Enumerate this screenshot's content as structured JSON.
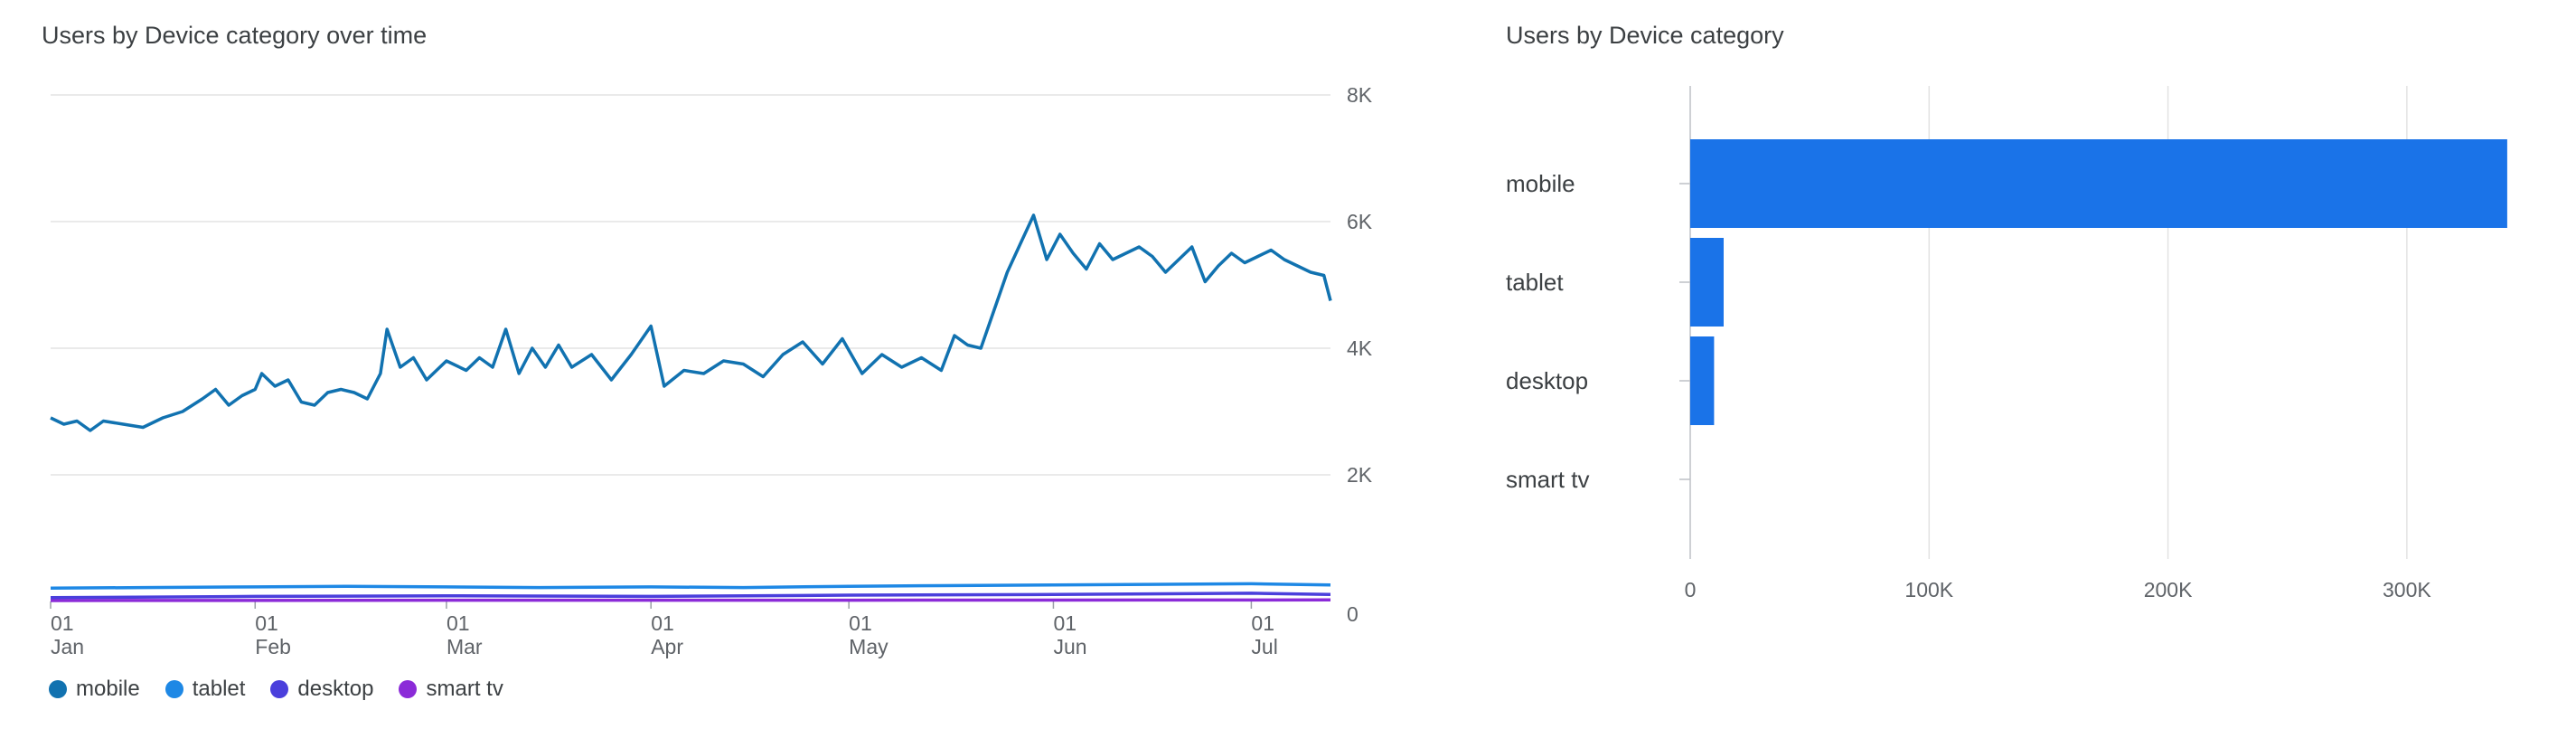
{
  "colors": {
    "mobile": "#1172b0",
    "tablet": "#1e88e5",
    "desktop": "#4a3fdc",
    "smart_tv": "#8b2bd8",
    "bar": "#1a73e8",
    "grid": "#e3e3e3"
  },
  "chart_data": [
    {
      "type": "line",
      "title": "Users by Device category over time",
      "ylim": [
        0,
        8000
      ],
      "y_ticks": [
        0,
        2000,
        4000,
        6000,
        8000
      ],
      "y_tick_labels": [
        "0",
        "2K",
        "4K",
        "6K",
        "8K"
      ],
      "xlim": [
        "2024-01-01",
        "2024-07-13"
      ],
      "x_ticks": [
        {
          "date": "2024-01-01",
          "day": "01",
          "month": "Jan"
        },
        {
          "date": "2024-02-01",
          "day": "01",
          "month": "Feb"
        },
        {
          "date": "2024-03-01",
          "day": "01",
          "month": "Mar"
        },
        {
          "date": "2024-04-01",
          "day": "01",
          "month": "Apr"
        },
        {
          "date": "2024-05-01",
          "day": "01",
          "month": "May"
        },
        {
          "date": "2024-06-01",
          "day": "01",
          "month": "Jun"
        },
        {
          "date": "2024-07-01",
          "day": "01",
          "month": "Jul"
        }
      ],
      "grid": true,
      "legend_position": "bottom-left",
      "series": [
        {
          "name": "mobile",
          "color_key": "mobile",
          "points": [
            [
              "2024-01-01",
              2900
            ],
            [
              "2024-01-03",
              2800
            ],
            [
              "2024-01-05",
              2850
            ],
            [
              "2024-01-07",
              2700
            ],
            [
              "2024-01-09",
              2850
            ],
            [
              "2024-01-12",
              2800
            ],
            [
              "2024-01-15",
              2750
            ],
            [
              "2024-01-18",
              2900
            ],
            [
              "2024-01-21",
              3000
            ],
            [
              "2024-01-24",
              3200
            ],
            [
              "2024-01-26",
              3350
            ],
            [
              "2024-01-28",
              3100
            ],
            [
              "2024-01-30",
              3250
            ],
            [
              "2024-02-01",
              3350
            ],
            [
              "2024-02-02",
              3600
            ],
            [
              "2024-02-04",
              3400
            ],
            [
              "2024-02-06",
              3500
            ],
            [
              "2024-02-08",
              3150
            ],
            [
              "2024-02-10",
              3100
            ],
            [
              "2024-02-12",
              3300
            ],
            [
              "2024-02-14",
              3350
            ],
            [
              "2024-02-16",
              3300
            ],
            [
              "2024-02-18",
              3200
            ],
            [
              "2024-02-20",
              3600
            ],
            [
              "2024-02-21",
              4300
            ],
            [
              "2024-02-23",
              3700
            ],
            [
              "2024-02-25",
              3850
            ],
            [
              "2024-02-27",
              3500
            ],
            [
              "2024-03-01",
              3800
            ],
            [
              "2024-03-04",
              3650
            ],
            [
              "2024-03-06",
              3850
            ],
            [
              "2024-03-08",
              3700
            ],
            [
              "2024-03-10",
              4300
            ],
            [
              "2024-03-12",
              3600
            ],
            [
              "2024-03-14",
              4000
            ],
            [
              "2024-03-16",
              3700
            ],
            [
              "2024-03-18",
              4050
            ],
            [
              "2024-03-20",
              3700
            ],
            [
              "2024-03-23",
              3900
            ],
            [
              "2024-03-26",
              3500
            ],
            [
              "2024-03-29",
              3900
            ],
            [
              "2024-04-01",
              4350
            ],
            [
              "2024-04-03",
              3400
            ],
            [
              "2024-04-06",
              3650
            ],
            [
              "2024-04-09",
              3600
            ],
            [
              "2024-04-12",
              3800
            ],
            [
              "2024-04-15",
              3750
            ],
            [
              "2024-04-18",
              3550
            ],
            [
              "2024-04-21",
              3900
            ],
            [
              "2024-04-24",
              4100
            ],
            [
              "2024-04-27",
              3750
            ],
            [
              "2024-04-30",
              4150
            ],
            [
              "2024-05-03",
              3600
            ],
            [
              "2024-05-06",
              3900
            ],
            [
              "2024-05-09",
              3700
            ],
            [
              "2024-05-12",
              3850
            ],
            [
              "2024-05-15",
              3650
            ],
            [
              "2024-05-17",
              4200
            ],
            [
              "2024-05-19",
              4050
            ],
            [
              "2024-05-21",
              4000
            ],
            [
              "2024-05-23",
              4600
            ],
            [
              "2024-05-25",
              5200
            ],
            [
              "2024-05-27",
              5650
            ],
            [
              "2024-05-29",
              6100
            ],
            [
              "2024-05-31",
              5400
            ],
            [
              "2024-06-02",
              5800
            ],
            [
              "2024-06-04",
              5500
            ],
            [
              "2024-06-06",
              5250
            ],
            [
              "2024-06-08",
              5650
            ],
            [
              "2024-06-10",
              5400
            ],
            [
              "2024-06-12",
              5500
            ],
            [
              "2024-06-14",
              5600
            ],
            [
              "2024-06-16",
              5450
            ],
            [
              "2024-06-18",
              5200
            ],
            [
              "2024-06-20",
              5400
            ],
            [
              "2024-06-22",
              5600
            ],
            [
              "2024-06-24",
              5050
            ],
            [
              "2024-06-26",
              5300
            ],
            [
              "2024-06-28",
              5500
            ],
            [
              "2024-06-30",
              5350
            ],
            [
              "2024-07-02",
              5450
            ],
            [
              "2024-07-04",
              5550
            ],
            [
              "2024-07-06",
              5400
            ],
            [
              "2024-07-08",
              5300
            ],
            [
              "2024-07-10",
              5200
            ],
            [
              "2024-07-12",
              5150
            ],
            [
              "2024-07-13",
              4750
            ]
          ]
        },
        {
          "name": "tablet",
          "color_key": "tablet",
          "points": [
            [
              "2024-01-01",
              210
            ],
            [
              "2024-01-15",
              220
            ],
            [
              "2024-02-01",
              230
            ],
            [
              "2024-02-15",
              240
            ],
            [
              "2024-03-01",
              230
            ],
            [
              "2024-03-15",
              220
            ],
            [
              "2024-04-01",
              230
            ],
            [
              "2024-04-15",
              220
            ],
            [
              "2024-05-01",
              240
            ],
            [
              "2024-05-15",
              250
            ],
            [
              "2024-06-01",
              260
            ],
            [
              "2024-06-15",
              270
            ],
            [
              "2024-07-01",
              280
            ],
            [
              "2024-07-13",
              260
            ]
          ]
        },
        {
          "name": "desktop",
          "color_key": "desktop",
          "points": [
            [
              "2024-01-01",
              60
            ],
            [
              "2024-02-01",
              80
            ],
            [
              "2024-03-01",
              90
            ],
            [
              "2024-04-01",
              80
            ],
            [
              "2024-05-01",
              100
            ],
            [
              "2024-06-01",
              110
            ],
            [
              "2024-07-01",
              130
            ],
            [
              "2024-07-13",
              110
            ]
          ]
        },
        {
          "name": "smart tv",
          "color_key": "smart_tv",
          "points": [
            [
              "2024-01-01",
              15
            ],
            [
              "2024-03-01",
              20
            ],
            [
              "2024-05-01",
              20
            ],
            [
              "2024-07-13",
              25
            ]
          ]
        }
      ]
    },
    {
      "type": "bar",
      "orientation": "horizontal",
      "title": "Users by Device category",
      "categories": [
        "mobile",
        "tablet",
        "desktop",
        "smart tv"
      ],
      "values": [
        342000,
        14000,
        10000,
        0
      ],
      "xlim": [
        0,
        350000
      ],
      "x_ticks": [
        0,
        100000,
        200000,
        300000
      ],
      "x_tick_labels": [
        "0",
        "100K",
        "200K",
        "300K"
      ],
      "grid": true
    }
  ]
}
